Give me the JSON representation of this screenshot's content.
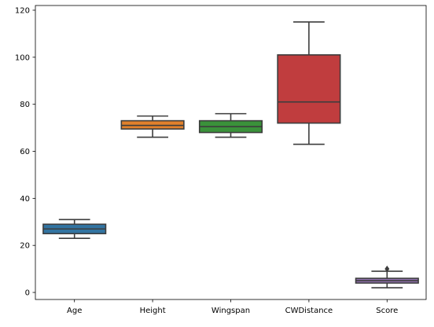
{
  "chart_data": {
    "type": "box",
    "title": "",
    "xlabel": "",
    "ylabel": "",
    "ylim": [
      -3,
      122
    ],
    "yticks": [
      0,
      20,
      40,
      60,
      80,
      100,
      120
    ],
    "ytick_labels": [
      "0",
      "20",
      "40",
      "60",
      "80",
      "100",
      "120"
    ],
    "grid": false,
    "categories": [
      "Age",
      "Height",
      "Wingspan",
      "CWDistance",
      "Score"
    ],
    "series": [
      {
        "whisker_low": 23,
        "q1": 25,
        "median": 27,
        "q3": 29,
        "whisker_high": 31,
        "outliers": [],
        "color": "#3274a1"
      },
      {
        "whisker_low": 66,
        "q1": 69.5,
        "median": 71,
        "q3": 73,
        "whisker_high": 75,
        "outliers": [],
        "color": "#e1812c"
      },
      {
        "whisker_low": 66,
        "q1": 68,
        "median": 70.5,
        "q3": 73,
        "whisker_high": 76,
        "outliers": [],
        "color": "#3a923a"
      },
      {
        "whisker_low": 63,
        "q1": 72,
        "median": 81,
        "q3": 101,
        "whisker_high": 115,
        "outliers": [],
        "color": "#c03d3e"
      },
      {
        "whisker_low": 2,
        "q1": 4,
        "median": 5,
        "q3": 6,
        "whisker_high": 9,
        "outliers": [
          10
        ],
        "color": "#9372b2"
      }
    ]
  }
}
